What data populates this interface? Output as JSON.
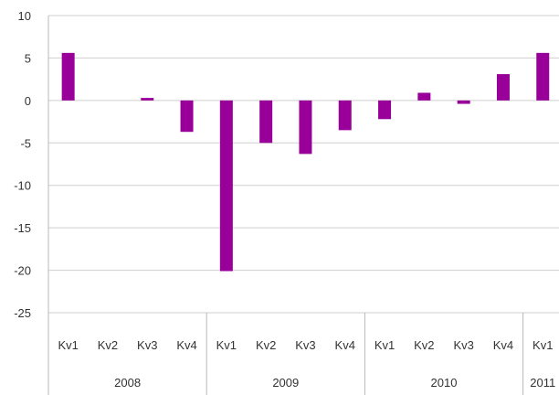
{
  "chart_data": {
    "type": "bar",
    "title": "",
    "xlabel": "",
    "ylabel": "",
    "ylim": [
      -25,
      10
    ],
    "yticks": [
      10,
      5,
      0,
      -5,
      -10,
      -15,
      -20,
      -25
    ],
    "grid": true,
    "legend": "none",
    "bar_color": "#990099",
    "categories": [
      "Kv1",
      "Kv2",
      "Kv3",
      "Kv4",
      "Kv1",
      "Kv2",
      "Kv3",
      "Kv4",
      "Kv1",
      "Kv2",
      "Kv3",
      "Kv4",
      "Kv1"
    ],
    "groups": [
      {
        "label": "2008",
        "count": 4
      },
      {
        "label": "2009",
        "count": 4
      },
      {
        "label": "2010",
        "count": 4
      },
      {
        "label": "2011",
        "count": 1
      }
    ],
    "values": [
      5.6,
      0.0,
      0.3,
      -3.7,
      -20.1,
      -5.0,
      -6.3,
      -3.5,
      -2.2,
      0.9,
      -0.4,
      3.1,
      5.6
    ]
  }
}
